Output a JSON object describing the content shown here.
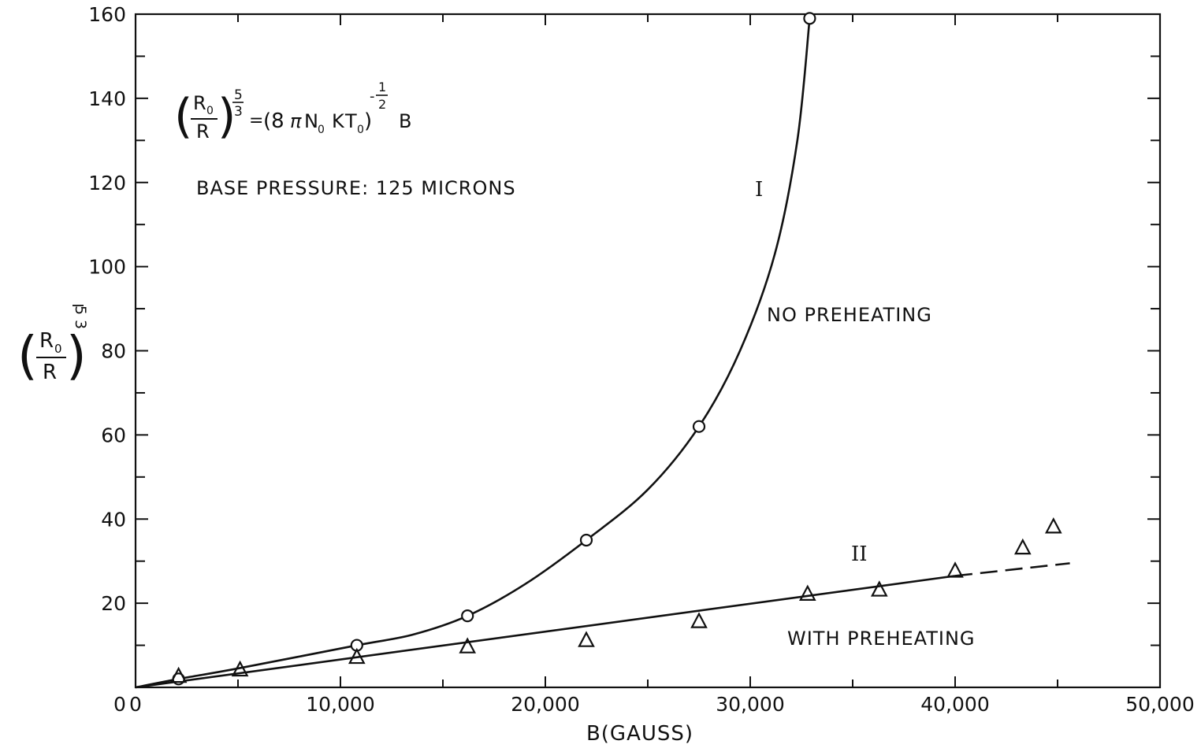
{
  "chart_data": {
    "type": "line",
    "xlabel": "B(GAUSS)",
    "ylabel_parts": {
      "numerator": "R",
      "numerator_sub": "0",
      "denominator": "R",
      "exp_num": "5",
      "exp_den": "3"
    },
    "xlim": [
      0,
      50000
    ],
    "ylim": [
      0,
      160
    ],
    "x_ticks": [
      0,
      10000,
      20000,
      30000,
      40000,
      50000
    ],
    "x_tick_labels": [
      "0",
      "10,000",
      "20,000",
      "30,000",
      "40,000",
      "50,000"
    ],
    "y_ticks": [
      20,
      40,
      60,
      80,
      100,
      120,
      140,
      160
    ],
    "y_tick_labels": [
      "20",
      "40",
      "60",
      "80",
      "100",
      "120",
      "140",
      "160"
    ],
    "grid": false,
    "annotations": {
      "equation": {
        "lhs_num": "R",
        "lhs_num_sub": "0",
        "lhs_den": "R",
        "lhs_exp_num": "5",
        "lhs_exp_den": "3",
        "equals": "=",
        "rhs_open": "(8",
        "pi": "π",
        "rhs_n": "N",
        "rhs_n_sub": "0",
        "rhs_k": "K",
        "rhs_t": "T",
        "rhs_t_sub": "0",
        "rhs_close": ")",
        "rhs_exp_sign": "-",
        "rhs_exp_num": "1",
        "rhs_exp_den": "2",
        "rhs_b": "B"
      },
      "base_pressure": "BASE PRESSURE: 125 MICRONS",
      "curve_I_label": "I",
      "curve_II_label": "II",
      "no_preheating": "NO PREHEATING",
      "with_preheating": "WITH PREHEATING"
    },
    "series": [
      {
        "marker": "circle",
        "x": [
          2100,
          10800,
          16200,
          22000,
          27500,
          32900
        ],
        "y": [
          2,
          10,
          17,
          35,
          62,
          159
        ]
      },
      {
        "marker": "triangle",
        "x": [
          2100,
          5100,
          10800,
          16200,
          22000,
          27500,
          32800,
          36300,
          40000,
          43300,
          44800
        ],
        "y": [
          2.5,
          4,
          7,
          9.5,
          11,
          15.5,
          22,
          23,
          27.5,
          33,
          38
        ]
      }
    ],
    "curve_I_fit": {
      "x": [
        0,
        2100,
        5000,
        10800,
        13500,
        16200,
        19000,
        22000,
        25000,
        27500,
        29500,
        31200,
        32300,
        32900
      ],
      "y": [
        0,
        2,
        4.5,
        10,
        12.5,
        17,
        24.5,
        35,
        47,
        62,
        80,
        103,
        130,
        159
      ]
    },
    "line_II_fit": {
      "solid": {
        "x": [
          0,
          40000
        ],
        "y": [
          0,
          26.5
        ]
      },
      "dashed": {
        "x": [
          40000,
          45600
        ],
        "y": [
          26.5,
          29.5
        ]
      }
    },
    "colors": {
      "ink": "#111111",
      "background": "#ffffff"
    }
  }
}
